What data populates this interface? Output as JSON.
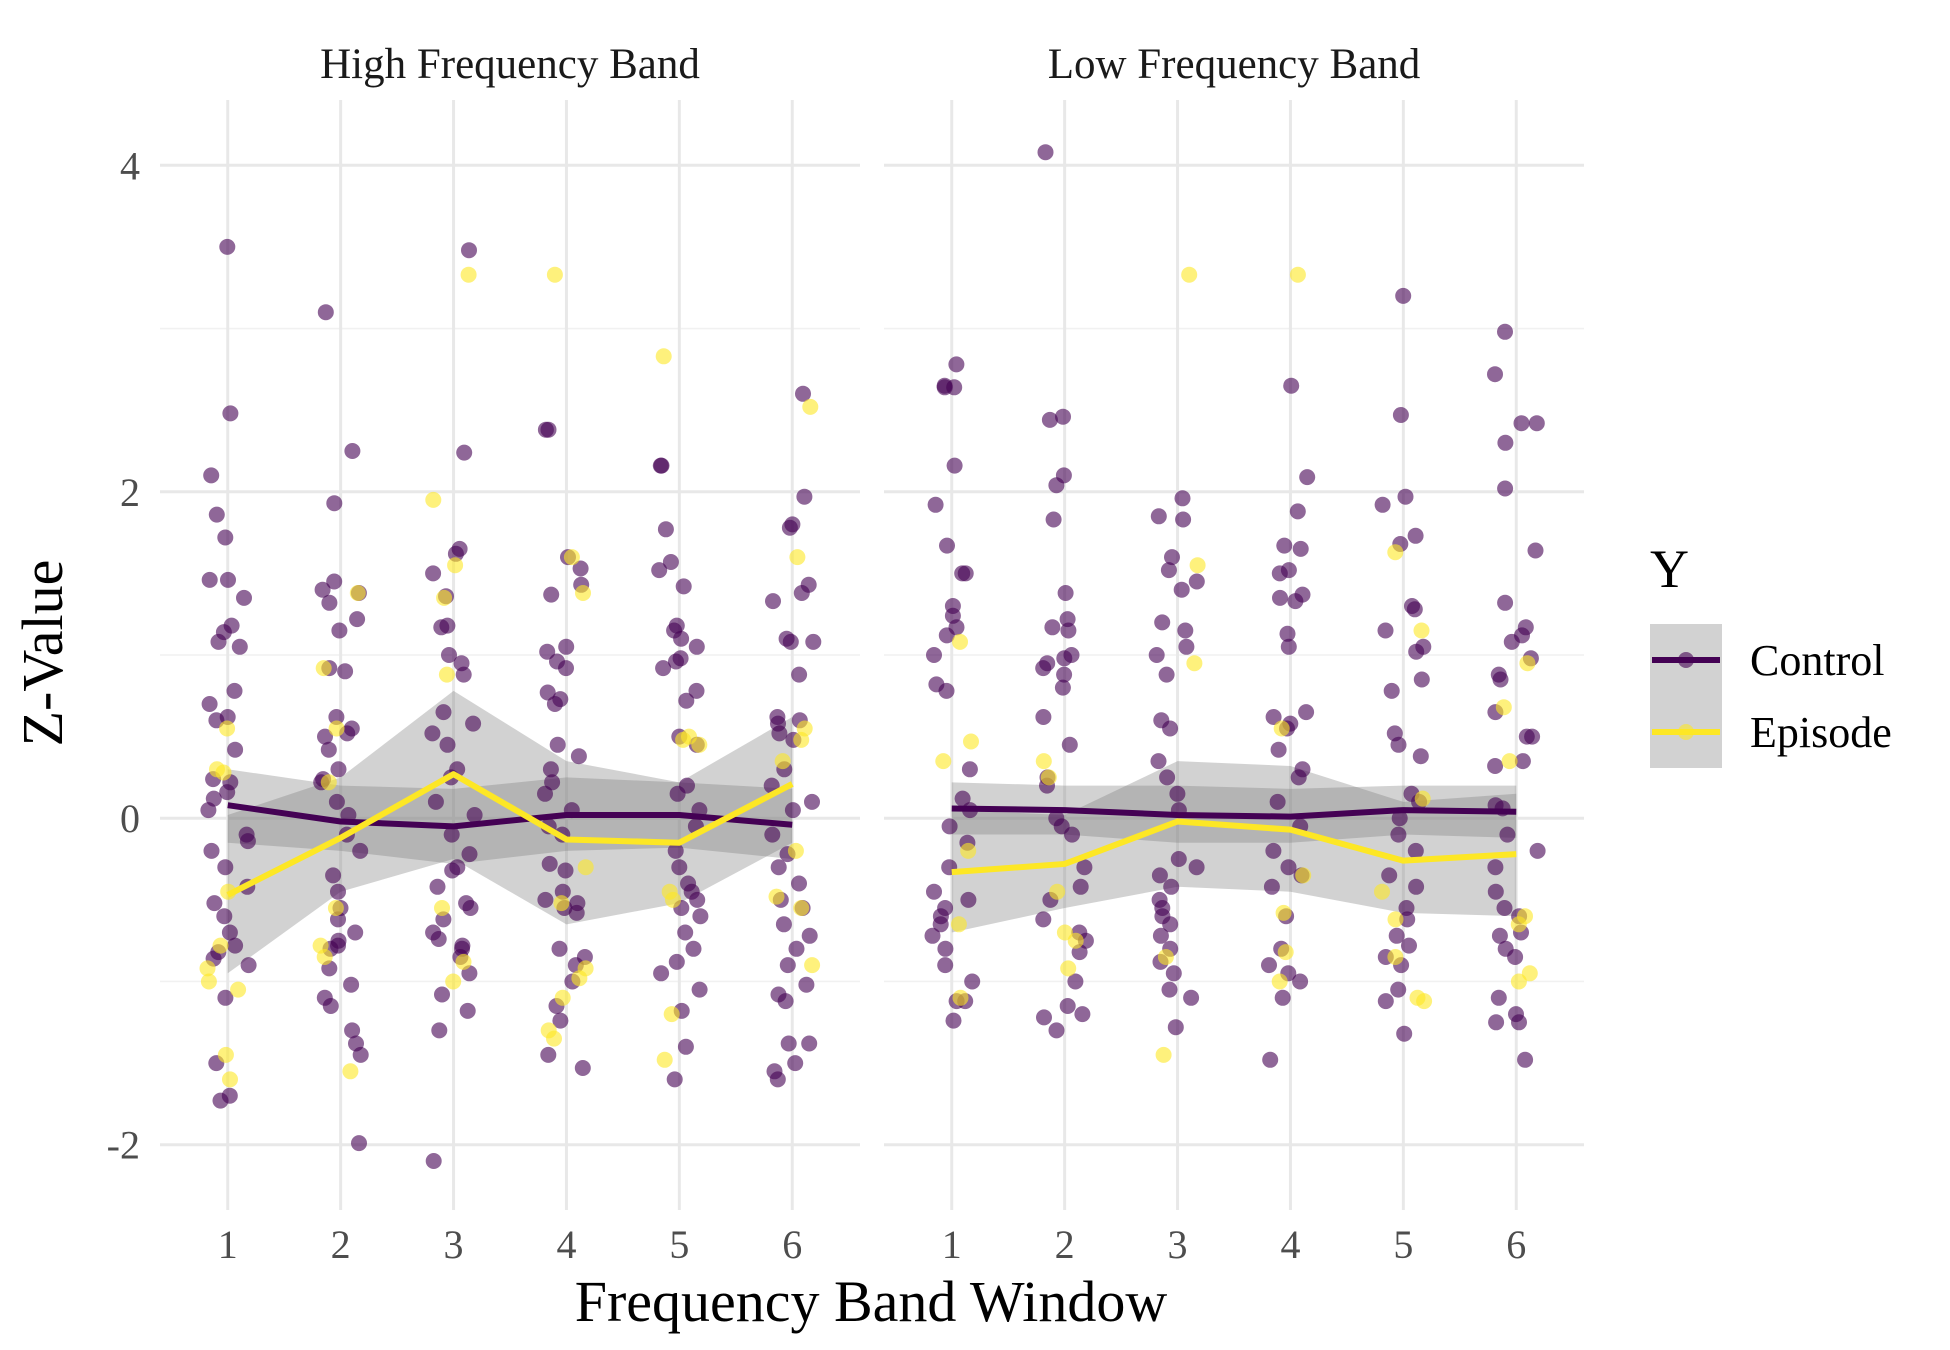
{
  "colors": {
    "control": "#440154",
    "episode": "#FDE725",
    "ribbon": "#7f7f7f"
  },
  "chart_data": {
    "type": "scatter",
    "xlabel": "Frequency Band Window",
    "ylabel": "Z-Value",
    "x_ticks": [
      "1",
      "2",
      "3",
      "4",
      "5",
      "6"
    ],
    "y_ticks": [
      "-2",
      "0",
      "2",
      "4"
    ],
    "ylim": [
      -2.4,
      4.4
    ],
    "xlim": [
      0.4,
      6.6
    ],
    "grid": true,
    "legend": {
      "title": "Y",
      "position": "right",
      "entries": [
        "Control",
        "Episode"
      ]
    },
    "panels": [
      {
        "title": "High Frequency Band",
        "series": [
          {
            "name": "Control",
            "x": [
              1,
              2,
              3,
              4,
              5,
              6
            ],
            "mean": [
              0.08,
              -0.02,
              -0.05,
              0.02,
              0.02,
              -0.04
            ],
            "ci_low": [
              -0.15,
              -0.2,
              -0.28,
              -0.2,
              -0.18,
              -0.25
            ],
            "ci_high": [
              0.3,
              0.2,
              0.18,
              0.25,
              0.22,
              0.18
            ],
            "points": {
              "1": [
                3.5,
                2.48,
                2.1,
                1.86,
                1.72,
                1.46,
                1.46,
                1.35,
                1.18,
                1.14,
                1.08,
                1.05,
                0.78,
                0.7,
                0.62,
                0.6,
                0.42,
                0.24,
                0.22,
                0.16,
                0.12,
                0.05,
                -0.1,
                -0.14,
                -0.2,
                -0.3,
                -0.42,
                -0.52,
                -0.6,
                -0.7,
                -0.78,
                -0.82,
                -0.86,
                -0.9,
                -1.1,
                -1.5,
                -1.7,
                -1.73
              ],
              "2": [
                3.1,
                2.25,
                1.93,
                1.45,
                1.4,
                1.38,
                1.32,
                1.22,
                1.15,
                0.92,
                0.9,
                0.62,
                0.55,
                0.52,
                0.5,
                0.42,
                0.3,
                0.24,
                0.22,
                0.1,
                0.02,
                -0.1,
                -0.2,
                -0.35,
                -0.45,
                -0.55,
                -0.62,
                -0.7,
                -0.75,
                -0.78,
                -0.8,
                -0.92,
                -1.02,
                -1.1,
                -1.15,
                -1.3,
                -1.38,
                -1.45,
                -1.99
              ],
              "3": [
                3.48,
                2.24,
                1.65,
                1.62,
                1.5,
                1.36,
                1.18,
                1.17,
                1.0,
                0.95,
                0.88,
                0.65,
                0.58,
                0.52,
                0.45,
                0.3,
                0.25,
                0.1,
                0.02,
                -0.1,
                -0.22,
                -0.3,
                -0.32,
                -0.42,
                -0.52,
                -0.55,
                -0.62,
                -0.7,
                -0.74,
                -0.78,
                -0.8,
                -0.85,
                -0.95,
                -1.08,
                -1.18,
                -1.3,
                -2.1
              ],
              "4": [
                2.38,
                2.38,
                1.6,
                1.53,
                1.43,
                1.37,
                1.05,
                1.02,
                0.96,
                0.92,
                0.77,
                0.73,
                0.7,
                0.45,
                0.38,
                0.3,
                0.22,
                0.15,
                0.05,
                -0.05,
                -0.1,
                -0.28,
                -0.32,
                -0.45,
                -0.5,
                -0.52,
                -0.55,
                -0.58,
                -0.8,
                -0.85,
                -0.9,
                -1.0,
                -1.15,
                -1.24,
                -1.45,
                -1.53
              ],
              "5": [
                2.16,
                2.16,
                1.77,
                1.57,
                1.52,
                1.42,
                1.18,
                1.15,
                1.1,
                1.05,
                0.98,
                0.96,
                0.92,
                0.78,
                0.72,
                0.5,
                0.45,
                0.2,
                0.15,
                0.05,
                -0.05,
                -0.2,
                -0.3,
                -0.4,
                -0.45,
                -0.5,
                -0.55,
                -0.6,
                -0.7,
                -0.8,
                -0.88,
                -0.95,
                -1.05,
                -1.18,
                -1.4,
                -1.6
              ],
              "6": [
                2.6,
                1.97,
                1.8,
                1.78,
                1.43,
                1.38,
                1.33,
                1.1,
                1.08,
                1.08,
                0.88,
                0.62,
                0.6,
                0.58,
                0.52,
                0.48,
                0.3,
                0.2,
                0.1,
                0.05,
                -0.1,
                -0.22,
                -0.3,
                -0.4,
                -0.5,
                -0.55,
                -0.65,
                -0.72,
                -0.8,
                -0.9,
                -1.02,
                -1.08,
                -1.12,
                -1.38,
                -1.38,
                -1.5,
                -1.55,
                -1.6
              ]
            }
          },
          {
            "name": "Episode",
            "x": [
              1,
              2,
              3,
              4,
              5,
              6
            ],
            "mean": [
              -0.47,
              -0.12,
              0.27,
              -0.13,
              -0.15,
              0.21
            ],
            "ci_low": [
              -0.95,
              -0.45,
              -0.25,
              -0.65,
              -0.52,
              -0.15
            ],
            "ci_high": [
              0.02,
              0.25,
              0.78,
              0.35,
              0.22,
              0.62
            ],
            "points": {
              "1": [
                0.55,
                0.3,
                0.28,
                -0.45,
                -0.78,
                -0.92,
                -1.0,
                -1.05,
                -1.45,
                -1.6
              ],
              "2": [
                1.38,
                0.92,
                0.55,
                0.22,
                -0.55,
                -0.78,
                -0.85,
                -1.55
              ],
              "3": [
                3.33,
                1.95,
                1.55,
                1.35,
                0.88,
                -0.55,
                -0.88,
                -1.0
              ],
              "4": [
                3.33,
                1.6,
                1.38,
                -0.3,
                -0.52,
                -0.92,
                -0.98,
                -1.1,
                -1.3,
                -1.35
              ],
              "5": [
                2.83,
                0.5,
                0.48,
                0.45,
                -0.45,
                -0.5,
                -1.2,
                -1.48
              ],
              "6": [
                2.52,
                1.6,
                0.55,
                0.48,
                0.35,
                -0.2,
                -0.48,
                -0.55,
                -0.9
              ]
            }
          }
        ]
      },
      {
        "title": "Low Frequency Band",
        "series": [
          {
            "name": "Control",
            "x": [
              1,
              2,
              3,
              4,
              5,
              6
            ],
            "mean": [
              0.06,
              0.05,
              0.02,
              0.01,
              0.05,
              0.04
            ],
            "ci_low": [
              -0.1,
              -0.1,
              -0.15,
              -0.15,
              -0.1,
              -0.12
            ],
            "ci_high": [
              0.22,
              0.2,
              0.2,
              0.18,
              0.2,
              0.2
            ],
            "points": {
              "1": [
                2.78,
                2.65,
                2.64,
                2.64,
                2.16,
                1.92,
                1.67,
                1.5,
                1.5,
                1.3,
                1.24,
                1.17,
                1.12,
                1.0,
                0.82,
                0.78,
                0.3,
                0.12,
                0.05,
                -0.05,
                -0.15,
                -0.3,
                -0.45,
                -0.5,
                -0.55,
                -0.6,
                -0.65,
                -0.72,
                -0.8,
                -0.9,
                -1.0,
                -1.12,
                -1.12,
                -1.24
              ],
              "2": [
                4.08,
                2.46,
                2.44,
                2.1,
                2.04,
                1.83,
                1.38,
                1.22,
                1.17,
                1.15,
                1.0,
                0.98,
                0.95,
                0.92,
                0.88,
                0.8,
                0.62,
                0.45,
                0.25,
                0.2,
                0.0,
                -0.05,
                -0.1,
                -0.3,
                -0.42,
                -0.5,
                -0.62,
                -0.7,
                -0.75,
                -0.82,
                -1.0,
                -1.15,
                -1.2,
                -1.22,
                -1.3
              ],
              "3": [
                1.96,
                1.85,
                1.83,
                1.6,
                1.52,
                1.45,
                1.4,
                1.2,
                1.15,
                1.05,
                1.0,
                0.88,
                0.6,
                0.55,
                0.35,
                0.25,
                0.15,
                0.05,
                -0.25,
                -0.3,
                -0.35,
                -0.42,
                -0.5,
                -0.55,
                -0.6,
                -0.65,
                -0.72,
                -0.8,
                -0.88,
                -0.95,
                -1.05,
                -1.1,
                -1.28
              ],
              "4": [
                2.65,
                2.09,
                1.88,
                1.67,
                1.65,
                1.52,
                1.5,
                1.37,
                1.35,
                1.33,
                1.13,
                1.05,
                0.65,
                0.62,
                0.58,
                0.55,
                0.42,
                0.3,
                0.25,
                0.1,
                -0.05,
                -0.2,
                -0.3,
                -0.35,
                -0.42,
                -0.6,
                -0.8,
                -0.9,
                -0.95,
                -1.0,
                -1.1,
                -1.48
              ],
              "5": [
                3.2,
                2.47,
                1.97,
                1.92,
                1.73,
                1.68,
                1.3,
                1.28,
                1.15,
                1.05,
                1.02,
                0.85,
                0.78,
                0.52,
                0.45,
                0.38,
                0.15,
                0.1,
                0.0,
                -0.1,
                -0.2,
                -0.35,
                -0.42,
                -0.55,
                -0.62,
                -0.72,
                -0.78,
                -0.85,
                -0.9,
                -1.05,
                -1.12,
                -1.32
              ],
              "6": [
                2.98,
                2.72,
                2.42,
                2.42,
                2.3,
                2.02,
                1.64,
                1.32,
                1.17,
                1.12,
                1.08,
                0.98,
                0.88,
                0.85,
                0.65,
                0.5,
                0.5,
                0.35,
                0.32,
                0.08,
                0.06,
                -0.1,
                -0.2,
                -0.3,
                -0.45,
                -0.55,
                -0.6,
                -0.7,
                -0.72,
                -0.8,
                -0.85,
                -1.1,
                -1.2,
                -1.25,
                -1.25,
                -1.48
              ]
            }
          },
          {
            "name": "Episode",
            "x": [
              1,
              2,
              3,
              4,
              5,
              6
            ],
            "mean": [
              -0.33,
              -0.28,
              -0.02,
              -0.07,
              -0.26,
              -0.22
            ],
            "ci_low": [
              -0.7,
              -0.55,
              -0.42,
              -0.45,
              -0.58,
              -0.6
            ],
            "ci_high": [
              0.05,
              0.02,
              0.35,
              0.32,
              0.1,
              0.15
            ],
            "points": {
              "1": [
                1.08,
                0.47,
                0.35,
                -0.2,
                -0.65,
                -1.1
              ],
              "2": [
                0.35,
                0.25,
                -0.45,
                -0.7,
                -0.75,
                -0.92
              ],
              "3": [
                3.33,
                1.55,
                0.95,
                -0.85,
                -1.45
              ],
              "4": [
                3.33,
                0.55,
                -0.35,
                -0.58,
                -0.82,
                -1.0
              ],
              "5": [
                1.63,
                1.15,
                0.12,
                -0.45,
                -0.62,
                -0.85,
                -1.1,
                -1.12
              ],
              "6": [
                0.95,
                0.68,
                0.35,
                -0.6,
                -0.65,
                -0.95,
                -1.0
              ]
            }
          }
        ]
      }
    ]
  }
}
